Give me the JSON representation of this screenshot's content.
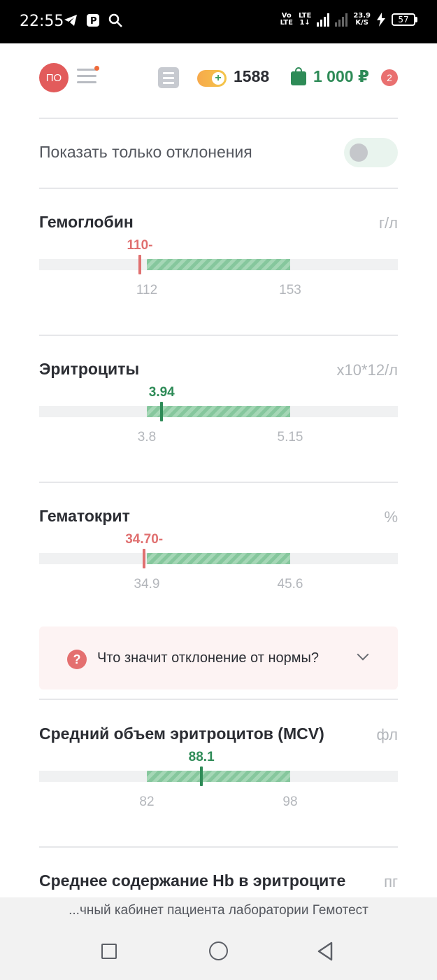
{
  "status_bar": {
    "time": "22:55",
    "net_speed_value": "23.9",
    "net_speed_unit": "K/S",
    "volte_top": "Vo",
    "volte_bottom": "LTE",
    "lte_top": "LTE",
    "lte_bottom": "1↓",
    "battery": "57",
    "icons": [
      "telegram-icon",
      "parking-icon",
      "search-icon",
      "signal-icon",
      "charging-icon",
      "battery-icon"
    ]
  },
  "header": {
    "avatar_initials": "ПО",
    "coins": "1588",
    "balance": "1 000 ₽",
    "cart_count": "2",
    "colors": {
      "avatar": "#e25b5b",
      "balance": "#2e8b57",
      "badge": "#e97070"
    }
  },
  "filter": {
    "label": "Показать только отклонения",
    "enabled": false
  },
  "indicators": [
    {
      "name": "Гемоглобин",
      "unit": "г/л",
      "value": "110-",
      "norm_min": "112",
      "norm_max": "153",
      "status": "low",
      "value_num": 110,
      "min_num": 112,
      "max_num": 153
    },
    {
      "name": "Эритроциты",
      "unit": "x10*12/л",
      "value": "3.94",
      "norm_min": "3.8",
      "norm_max": "5.15",
      "status": "normal",
      "value_num": 3.94,
      "min_num": 3.8,
      "max_num": 5.15
    },
    {
      "name": "Гематокрит",
      "unit": "%",
      "value": "34.70-",
      "norm_min": "34.9",
      "norm_max": "45.6",
      "status": "low",
      "value_num": 34.7,
      "min_num": 34.9,
      "max_num": 45.6
    },
    {
      "name": "Средний объем эритроцитов (MCV)",
      "unit": "фл",
      "value": "88.1",
      "norm_min": "82",
      "norm_max": "98",
      "status": "normal",
      "value_num": 88.1,
      "min_num": 82,
      "max_num": 98
    },
    {
      "name": "Среднее содержание Hb в эритроците",
      "unit": "пг"
    }
  ],
  "info": {
    "question": "Что значит отклонение от нормы?"
  },
  "browser": {
    "address": "...чный кабинет пациента лаборатории Гемотест"
  },
  "colors": {
    "low": "#e07070",
    "normal": "#2e8b57",
    "norm_band": "#92cda6"
  }
}
